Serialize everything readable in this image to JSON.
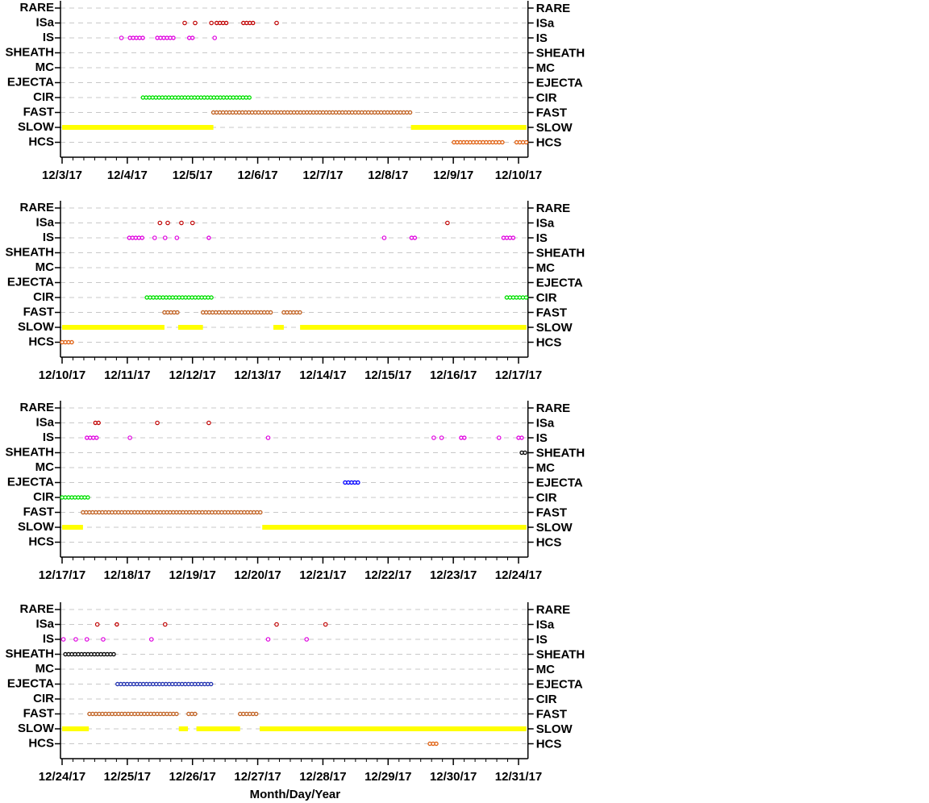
{
  "chart_data": [
    {
      "type": "timeline",
      "categories": [
        "RARE",
        "ISa",
        "IS",
        "SHEATH",
        "MC",
        "EJECTA",
        "CIR",
        "FAST",
        "SLOW",
        "HCS"
      ],
      "xlim": [
        3,
        10.12
      ],
      "xticks": [
        {
          "value": 3,
          "label": "12/3/17"
        },
        {
          "value": 4,
          "label": "12/4/17"
        },
        {
          "value": 5,
          "label": "12/5/17"
        },
        {
          "value": 6,
          "label": "12/6/17"
        },
        {
          "value": 7,
          "label": "12/7/17"
        },
        {
          "value": 8,
          "label": "12/8/17"
        },
        {
          "value": 9,
          "label": "12/9/17"
        },
        {
          "value": 10,
          "label": "12/10/17"
        }
      ],
      "series": [
        {
          "name": "ISa",
          "color": "#c00000",
          "runs": [
            [
              4.88,
              4.88
            ],
            [
              5.04,
              5.04
            ],
            [
              5.29,
              5.29
            ],
            [
              5.37,
              5.55
            ],
            [
              5.78,
              5.94
            ],
            [
              6.29,
              6.29
            ]
          ]
        },
        {
          "name": "IS",
          "color": "#e000e0",
          "runs": [
            [
              3.91,
              3.91
            ],
            [
              4.04,
              4.24
            ],
            [
              4.46,
              4.73
            ],
            [
              4.95,
              5.01
            ],
            [
              5.34,
              5.34
            ]
          ]
        },
        {
          "name": "CIR",
          "color": "#00e000",
          "runs": [
            [
              4.24,
              5.89
            ]
          ]
        },
        {
          "name": "FAST",
          "color": "#c06020",
          "runs": [
            [
              5.32,
              8.35
            ]
          ]
        },
        {
          "name": "SLOW",
          "color": "#ffff00",
          "runs": [
            [
              3.0,
              5.32
            ],
            [
              8.35,
              10.12
            ]
          ]
        },
        {
          "name": "HCS",
          "color": "#e06010",
          "runs": [
            [
              9.01,
              9.77
            ],
            [
              9.97,
              10.12
            ]
          ]
        }
      ]
    },
    {
      "type": "timeline",
      "categories": [
        "RARE",
        "ISa",
        "IS",
        "SHEATH",
        "MC",
        "EJECTA",
        "CIR",
        "FAST",
        "SLOW",
        "HCS"
      ],
      "xlim": [
        10,
        17.12
      ],
      "xticks": [
        {
          "value": 10,
          "label": "12/10/17"
        },
        {
          "value": 11,
          "label": "12/11/17"
        },
        {
          "value": 12,
          "label": "12/12/17"
        },
        {
          "value": 13,
          "label": "12/13/17"
        },
        {
          "value": 14,
          "label": "12/14/17"
        },
        {
          "value": 15,
          "label": "12/15/17"
        },
        {
          "value": 16,
          "label": "12/16/17"
        },
        {
          "value": 17,
          "label": "12/17/17"
        }
      ],
      "series": [
        {
          "name": "ISa",
          "color": "#c00000",
          "runs": [
            [
              11.5,
              11.5
            ],
            [
              11.62,
              11.62
            ],
            [
              11.83,
              11.83
            ],
            [
              12.0,
              12.0
            ],
            [
              15.91,
              15.91
            ]
          ]
        },
        {
          "name": "IS",
          "color": "#e000e0",
          "runs": [
            [
              11.03,
              11.27
            ],
            [
              11.42,
              11.42
            ],
            [
              11.58,
              11.58
            ],
            [
              11.76,
              11.76
            ],
            [
              12.25,
              12.29
            ],
            [
              14.94,
              14.94
            ],
            [
              15.36,
              15.45
            ],
            [
              16.77,
              16.96
            ]
          ]
        },
        {
          "name": "CIR",
          "color": "#00e000",
          "runs": [
            [
              11.3,
              12.31
            ],
            [
              16.82,
              17.12
            ]
          ]
        },
        {
          "name": "FAST",
          "color": "#c06020",
          "runs": [
            [
              11.57,
              11.77
            ],
            [
              12.16,
              13.23
            ],
            [
              13.4,
              13.65
            ]
          ]
        },
        {
          "name": "SLOW",
          "color": "#ffff00",
          "runs": [
            [
              10.0,
              11.57
            ],
            [
              11.78,
              12.16
            ],
            [
              13.24,
              13.4
            ],
            [
              13.65,
              17.12
            ]
          ]
        },
        {
          "name": "HCS",
          "color": "#e06010",
          "runs": [
            [
              10.0,
              10.19
            ]
          ]
        }
      ]
    },
    {
      "type": "timeline",
      "categories": [
        "RARE",
        "ISa",
        "IS",
        "SHEATH",
        "MC",
        "EJECTA",
        "CIR",
        "FAST",
        "SLOW",
        "HCS"
      ],
      "xlim": [
        17,
        24.12
      ],
      "xticks": [
        {
          "value": 17,
          "label": "12/17/17"
        },
        {
          "value": 18,
          "label": "12/18/17"
        },
        {
          "value": 19,
          "label": "12/19/17"
        },
        {
          "value": 20,
          "label": "12/20/17"
        },
        {
          "value": 21,
          "label": "12/21/17"
        },
        {
          "value": 22,
          "label": "12/22/17"
        },
        {
          "value": 23,
          "label": "12/23/17"
        },
        {
          "value": 24,
          "label": "12/24/17"
        }
      ],
      "series": [
        {
          "name": "ISa",
          "color": "#c00000",
          "runs": [
            [
              17.51,
              17.58
            ],
            [
              18.46,
              18.46
            ],
            [
              19.25,
              19.25
            ]
          ]
        },
        {
          "name": "IS",
          "color": "#e000e0",
          "runs": [
            [
              17.38,
              17.54
            ],
            [
              18.04,
              18.04
            ],
            [
              20.16,
              20.16
            ],
            [
              22.7,
              22.7
            ],
            [
              22.82,
              22.82
            ],
            [
              23.12,
              23.19
            ],
            [
              23.7,
              23.7
            ],
            [
              24.0,
              24.05
            ]
          ]
        },
        {
          "name": "SHEATH",
          "color": "#000000",
          "runs": [
            [
              24.05,
              24.12
            ]
          ]
        },
        {
          "name": "EJECTA",
          "color": "#0000ff",
          "runs": [
            [
              21.34,
              21.57
            ]
          ]
        },
        {
          "name": "CIR",
          "color": "#00e000",
          "runs": [
            [
              17.0,
              17.43
            ]
          ]
        },
        {
          "name": "FAST",
          "color": "#c06020",
          "runs": [
            [
              17.32,
              20.07
            ]
          ]
        },
        {
          "name": "SLOW",
          "color": "#ffff00",
          "runs": [
            [
              17.0,
              17.32
            ],
            [
              20.07,
              24.12
            ]
          ]
        }
      ]
    },
    {
      "type": "timeline",
      "categories": [
        "RARE",
        "ISa",
        "IS",
        "SHEATH",
        "MC",
        "EJECTA",
        "CIR",
        "FAST",
        "SLOW",
        "HCS"
      ],
      "xlim": [
        24,
        31.12
      ],
      "xticks": [
        {
          "value": 24,
          "label": "12/24/17"
        },
        {
          "value": 25,
          "label": "12/25/17"
        },
        {
          "value": 26,
          "label": "12/26/17"
        },
        {
          "value": 27,
          "label": "12/27/17"
        },
        {
          "value": 28,
          "label": "12/28/17"
        },
        {
          "value": 29,
          "label": "12/29/17"
        },
        {
          "value": 30,
          "label": "12/30/17"
        },
        {
          "value": 31,
          "label": "12/31/17"
        }
      ],
      "xlabel": "Month/Day/Year",
      "series": [
        {
          "name": "ISa",
          "color": "#c00000",
          "runs": [
            [
              24.54,
              24.54
            ],
            [
              24.84,
              24.88
            ],
            [
              25.58,
              25.58
            ],
            [
              27.29,
              27.29
            ],
            [
              28.04,
              28.04
            ]
          ]
        },
        {
          "name": "IS",
          "color": "#e000e0",
          "runs": [
            [
              24.02,
              24.02
            ],
            [
              24.21,
              24.21
            ],
            [
              24.38,
              24.38
            ],
            [
              24.63,
              24.63
            ],
            [
              25.37,
              25.37
            ],
            [
              27.16,
              27.16
            ],
            [
              27.75,
              27.75
            ]
          ]
        },
        {
          "name": "SHEATH",
          "color": "#000000",
          "runs": [
            [
              24.05,
              24.8
            ]
          ]
        },
        {
          "name": "EJECTA",
          "color": "#2030b0",
          "runs": [
            [
              24.85,
              26.31
            ]
          ]
        },
        {
          "name": "FAST",
          "color": "#c06020",
          "runs": [
            [
              24.42,
              25.78
            ],
            [
              25.94,
              26.06
            ],
            [
              26.73,
              27.02
            ]
          ]
        },
        {
          "name": "SLOW",
          "color": "#ffff00",
          "runs": [
            [
              24.0,
              24.41
            ],
            [
              25.79,
              25.93
            ],
            [
              26.06,
              26.73
            ],
            [
              27.03,
              31.12
            ]
          ]
        },
        {
          "name": "HCS",
          "color": "#e06010",
          "runs": [
            [
              29.64,
              29.76
            ]
          ]
        }
      ]
    }
  ]
}
